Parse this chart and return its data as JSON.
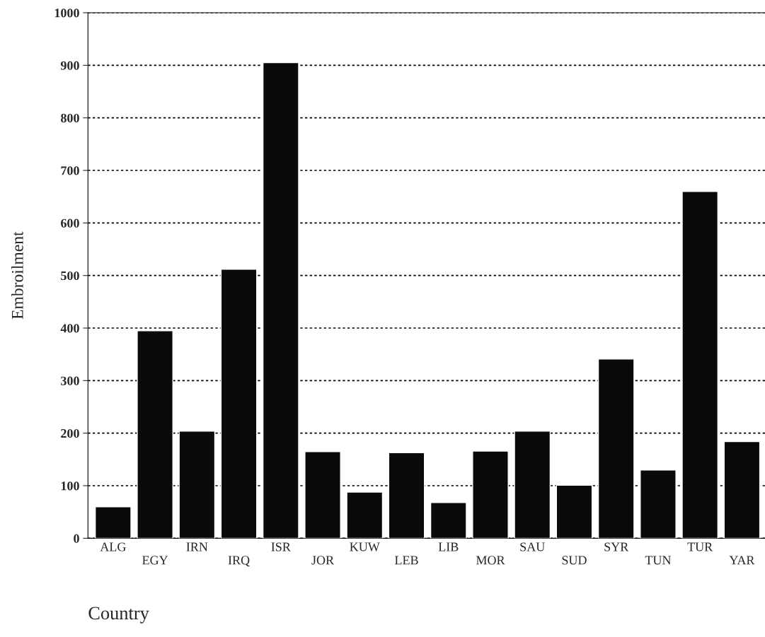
{
  "chart_data": {
    "type": "bar",
    "xlabel": "Country",
    "ylabel": "Embroilment",
    "categories": [
      "ALG",
      "EGY",
      "IRN",
      "IRQ",
      "ISR",
      "JOR",
      "KUW",
      "LEB",
      "LIB",
      "MOR",
      "SAU",
      "SUD",
      "SYR",
      "TUN",
      "TUR",
      "YAR"
    ],
    "values": [
      60,
      395,
      204,
      512,
      905,
      165,
      88,
      163,
      68,
      166,
      204,
      101,
      341,
      130,
      660,
      184
    ],
    "color": "#0a0a0a",
    "ylim": [
      0,
      1000
    ],
    "yticks": [
      0,
      100,
      200,
      300,
      400,
      500,
      600,
      700,
      800,
      900,
      1000
    ],
    "grid": "y",
    "line_style": "dotted"
  }
}
